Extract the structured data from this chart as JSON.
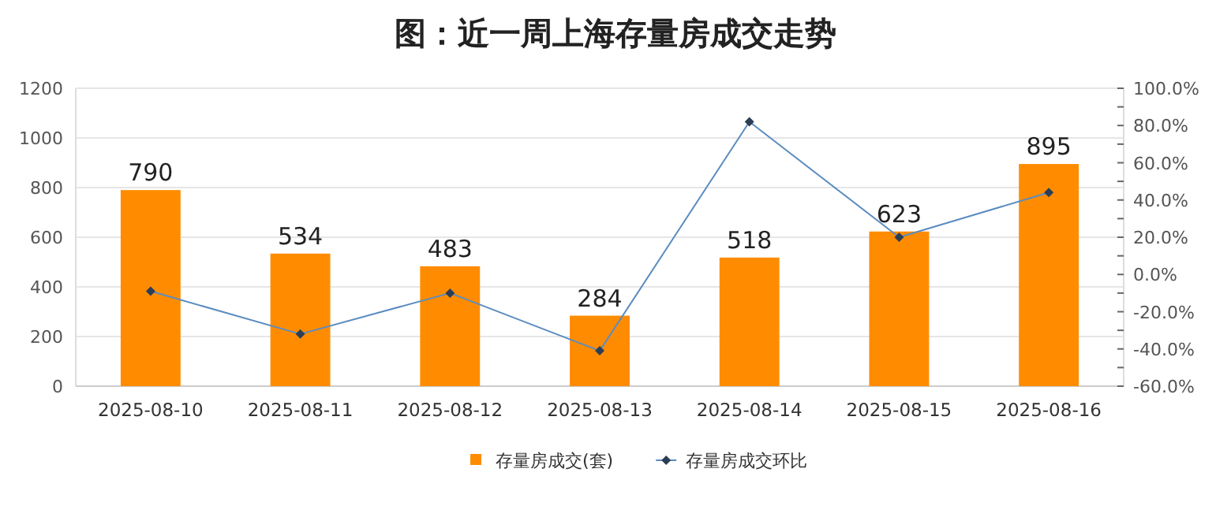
{
  "chart_data": {
    "type": "bar",
    "title": "图：近一周上海存量房成交走势",
    "categories": [
      "2025-08-10",
      "2025-08-11",
      "2025-08-12",
      "2025-08-13",
      "2025-08-14",
      "2025-08-15",
      "2025-08-16"
    ],
    "series": [
      {
        "name": "存量房成交(套)",
        "color": "#ff8c00",
        "values": [
          790,
          534,
          483,
          284,
          518,
          623,
          895
        ],
        "value_labels": [
          "790",
          "534",
          "483",
          "284",
          "518",
          "623",
          "895"
        ]
      },
      {
        "name": "存量房成交环比",
        "type": "line",
        "axis": "y2",
        "color": "#5b8cc0",
        "marker": "diamond",
        "values": [
          -9,
          -32,
          -10,
          -41,
          82,
          20,
          44
        ]
      }
    ],
    "ylim": [
      0,
      1200
    ],
    "yticks": [
      0,
      200,
      400,
      600,
      800,
      1000,
      1200
    ],
    "y2lim": [
      -60,
      100
    ],
    "y2ticks": [
      {
        "value": -60,
        "label": "-60.0%"
      },
      {
        "value": -50,
        "label": null
      },
      {
        "value": -40,
        "label": "-40.0%"
      },
      {
        "value": -30,
        "label": null
      },
      {
        "value": -20,
        "label": "-20.0%"
      },
      {
        "value": -10,
        "label": null
      },
      {
        "value": 0,
        "label": "0.0%"
      },
      {
        "value": 10,
        "label": null
      },
      {
        "value": 20,
        "label": "20.0%"
      },
      {
        "value": 30,
        "label": null
      },
      {
        "value": 40,
        "label": "40.0%"
      },
      {
        "value": 50,
        "label": null
      },
      {
        "value": 60,
        "label": "60.0%"
      },
      {
        "value": 70,
        "label": null
      },
      {
        "value": 80,
        "label": "80.0%"
      },
      {
        "value": 90,
        "label": null
      },
      {
        "value": 100,
        "label": "100.0%"
      }
    ],
    "grid": "y",
    "legend": "bottom"
  }
}
